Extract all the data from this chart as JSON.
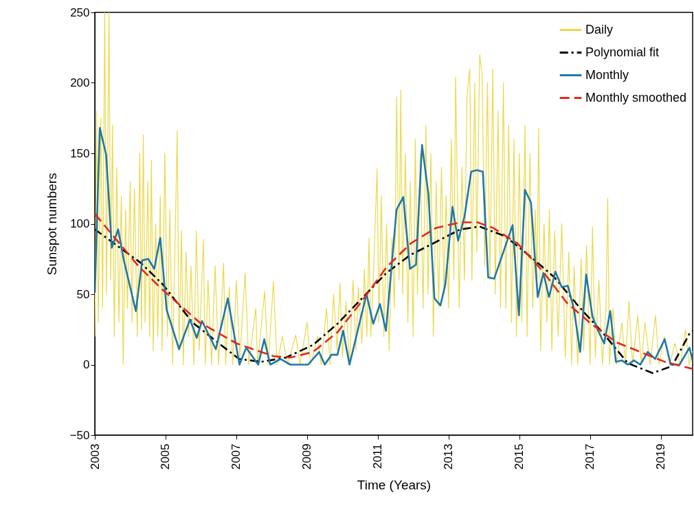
{
  "chart_data": {
    "type": "line",
    "xlabel": "Time (Years)",
    "ylabel": "Sunspot numbers",
    "xlim": [
      2003,
      2019.9
    ],
    "xticks": [
      2003,
      2005,
      2007,
      2009,
      2011,
      2013,
      2015,
      2017,
      2019
    ],
    "ylim": [
      -50,
      250
    ],
    "yticks": [
      -50,
      0,
      50,
      100,
      150,
      200,
      250
    ],
    "grid": false,
    "legend": "top right",
    "series": [
      {
        "name": "Daily",
        "color": "#ebd94a",
        "line_style": "solid",
        "x": [
          2003.0,
          2003.05,
          2003.1,
          2003.17,
          2003.22,
          2003.28,
          2003.33,
          2003.4,
          2003.45,
          2003.5,
          2003.55,
          2003.62,
          2003.68,
          2003.75,
          2003.8,
          2003.87,
          2003.92,
          2004.0,
          2004.05,
          2004.12,
          2004.2,
          2004.27,
          2004.32,
          2004.37,
          2004.42,
          2004.5,
          2004.55,
          2004.6,
          2004.65,
          2004.72,
          2004.78,
          2004.85,
          2004.9,
          2004.98,
          2005.05,
          2005.12,
          2005.2,
          2005.27,
          2005.33,
          2005.38,
          2005.45,
          2005.5,
          2005.58,
          2005.65,
          2005.72,
          2005.8,
          2005.87,
          2005.95,
          2006.07,
          2006.12,
          2006.2,
          2006.3,
          2006.4,
          2006.5,
          2006.64,
          2006.7,
          2006.8,
          2006.9,
          2007.0,
          2007.1,
          2007.25,
          2007.35,
          2007.55,
          2007.6,
          2007.8,
          2007.9,
          2008.05,
          2008.15,
          2008.3,
          2008.45,
          2008.68,
          2008.8,
          2009.0,
          2009.1,
          2009.3,
          2009.4,
          2009.55,
          2009.65,
          2009.75,
          2009.85,
          2009.93,
          2010.0,
          2010.1,
          2010.2,
          2010.3,
          2010.38,
          2010.45,
          2010.55,
          2010.62,
          2010.69,
          2010.75,
          2010.8,
          2010.87,
          2010.98,
          2011.03,
          2011.1,
          2011.17,
          2011.25,
          2011.32,
          2011.4,
          2011.47,
          2011.53,
          2011.6,
          2011.65,
          2011.7,
          2011.78,
          2011.85,
          2011.92,
          2012.0,
          2012.06,
          2012.12,
          2012.2,
          2012.28,
          2012.36,
          2012.42,
          2012.5,
          2012.57,
          2012.65,
          2012.72,
          2012.8,
          2012.87,
          2012.93,
          2013.0,
          2013.08,
          2013.15,
          2013.2,
          2013.3,
          2013.38,
          2013.45,
          2013.52,
          2013.6,
          2013.66,
          2013.74,
          2013.8,
          2013.88,
          2013.95,
          2014.02,
          2014.1,
          2014.17,
          2014.25,
          2014.32,
          2014.4,
          2014.47,
          2014.55,
          2014.62,
          2014.7,
          2014.78,
          2014.85,
          2014.92,
          2015.0,
          2015.07,
          2015.16,
          2015.22,
          2015.3,
          2015.38,
          2015.45,
          2015.5,
          2015.55,
          2015.6,
          2015.7,
          2015.78,
          2015.85,
          2015.92,
          2016.0,
          2016.1,
          2016.2,
          2016.3,
          2016.4,
          2016.48,
          2016.55,
          2016.65,
          2016.75,
          2016.82,
          2016.9,
          2017.0,
          2017.07,
          2017.15,
          2017.25,
          2017.35,
          2017.45,
          2017.5,
          2017.55,
          2017.65,
          2017.75,
          2017.9,
          2018.0,
          2018.1,
          2018.2,
          2018.35,
          2018.45,
          2018.55,
          2018.7,
          2018.85,
          2018.95,
          2019.1,
          2019.25,
          2019.4,
          2019.55,
          2019.7,
          2019.8,
          2019.9
        ],
        "values": [
          20,
          180,
          30,
          175,
          40,
          250,
          50,
          250,
          60,
          170,
          20,
          140,
          30,
          120,
          0,
          110,
          40,
          130,
          30,
          125,
          20,
          150,
          25,
          163,
          30,
          130,
          20,
          145,
          10,
          100,
          20,
          120,
          10,
          150,
          20,
          110,
          0,
          90,
          166,
          10,
          95,
          0,
          80,
          20,
          70,
          0,
          95,
          10,
          89,
          0,
          60,
          0,
          70,
          0,
          72,
          0,
          55,
          0,
          60,
          5,
          65,
          0,
          40,
          0,
          52,
          0,
          59,
          0,
          20,
          0,
          21,
          0,
          30,
          0,
          20,
          0,
          40,
          0,
          50,
          10,
          58,
          5,
          45,
          0,
          60,
          10,
          55,
          15,
          68,
          20,
          90,
          20,
          60,
          139,
          30,
          120,
          20,
          100,
          10,
          90,
          40,
          190,
          60,
          195,
          50,
          150,
          30,
          130,
          20,
          160,
          50,
          150,
          40,
          170,
          50,
          150,
          20,
          130,
          40,
          140,
          50,
          120,
          40,
          160,
          60,
          204,
          40,
          140,
          60,
          190,
          210,
          60,
          200,
          80,
          220,
          206,
          70,
          200,
          60,
          210,
          50,
          180,
          40,
          200,
          40,
          170,
          30,
          160,
          20,
          150,
          30,
          170,
          20,
          150,
          40,
          110,
          60,
          168,
          10,
          100,
          30,
          110,
          10,
          95,
          20,
          100,
          5,
          80,
          0,
          70,
          0,
          75,
          10,
          85,
          0,
          98,
          5,
          60,
          0,
          40,
          118,
          0,
          40,
          0,
          30,
          0,
          45,
          0,
          35,
          0,
          30,
          0,
          35,
          0,
          20,
          0,
          15,
          0,
          25,
          0,
          10
        ]
      },
      {
        "name": "Polynomial fit",
        "color": "#000000",
        "line_style": "dashdot",
        "x": [
          2003.0,
          2004.31,
          2004.92,
          2005.76,
          2006.51,
          2007.08,
          2007.7,
          2008.4,
          2009.17,
          2009.86,
          2010.55,
          2011.24,
          2011.93,
          2012.64,
          2013.33,
          2013.88,
          2014.61,
          2015.3,
          2015.99,
          2016.69,
          2017.38,
          2018.07,
          2018.77,
          2019.32,
          2019.81,
          2019.9
        ],
        "values": [
          96,
          72,
          57,
          30,
          15,
          4,
          2,
          5,
          14,
          29,
          47,
          65,
          78,
          87,
          96,
          98,
          91,
          77,
          62,
          41,
          22,
          1,
          -6,
          -1,
          22,
          24
        ]
      },
      {
        "name": "Monthly",
        "color": "#1f78a8",
        "line_style": "solid",
        "x": [
          2003.0,
          2003.14,
          2003.32,
          2003.48,
          2003.66,
          2003.82,
          2004.16,
          2004.34,
          2004.51,
          2004.68,
          2004.85,
          2005.03,
          2005.38,
          2005.69,
          2005.88,
          2006.03,
          2006.42,
          2006.76,
          2007.09,
          2007.28,
          2007.62,
          2007.79,
          2007.96,
          2008.25,
          2008.53,
          2009.03,
          2009.34,
          2009.5,
          2009.69,
          2009.86,
          2010.02,
          2010.2,
          2010.68,
          2010.87,
          2011.06,
          2011.23,
          2011.53,
          2011.72,
          2011.91,
          2012.08,
          2012.25,
          2012.43,
          2012.6,
          2012.77,
          2012.91,
          2013.11,
          2013.27,
          2013.45,
          2013.64,
          2013.8,
          2013.97,
          2014.12,
          2014.29,
          2014.81,
          2014.99,
          2015.16,
          2015.33,
          2015.52,
          2015.68,
          2015.84,
          2016.02,
          2016.2,
          2016.37,
          2016.54,
          2016.72,
          2016.89,
          2017.07,
          2017.23,
          2017.4,
          2017.57,
          2017.73,
          2017.9,
          2018.07,
          2018.24,
          2018.42,
          2018.63,
          2018.84,
          2019.11,
          2019.28,
          2019.53,
          2019.81,
          2019.9
        ],
        "values": [
          51,
          168,
          149,
          83,
          96,
          74,
          38,
          74,
          75,
          68,
          90,
          39,
          11,
          32,
          19,
          31,
          11,
          47,
          0,
          12,
          0,
          18,
          0,
          4,
          0,
          0,
          9,
          0,
          7,
          7,
          24,
          0,
          50,
          29,
          43,
          24,
          110,
          119,
          68,
          71,
          156,
          121,
          47,
          42,
          57,
          112,
          88,
          105,
          137,
          138,
          137,
          62,
          61,
          99,
          35,
          124,
          115,
          48,
          65,
          48,
          66,
          55,
          56,
          40,
          9,
          64,
          34,
          24,
          15,
          38,
          2,
          3,
          0,
          3,
          0,
          9,
          4,
          18,
          0,
          0,
          12,
          3
        ]
      },
      {
        "name": "Monthly smoothed",
        "color": "#e3281c",
        "line_style": "dashed",
        "x": [
          2003.0,
          2004.23,
          2004.92,
          2005.96,
          2007.01,
          2008.05,
          2008.53,
          2009.17,
          2009.86,
          2010.55,
          2011.24,
          2011.93,
          2012.64,
          2013.33,
          2013.82,
          2014.26,
          2014.95,
          2015.64,
          2016.34,
          2017.03,
          2017.73,
          2018.42,
          2019.11,
          2019.9
        ],
        "values": [
          107,
          70,
          53,
          30,
          15,
          6,
          5,
          9,
          23,
          45,
          69,
          86,
          97,
          101,
          101,
          97,
          86,
          67,
          44,
          29,
          16,
          9,
          2,
          -3
        ]
      }
    ]
  }
}
